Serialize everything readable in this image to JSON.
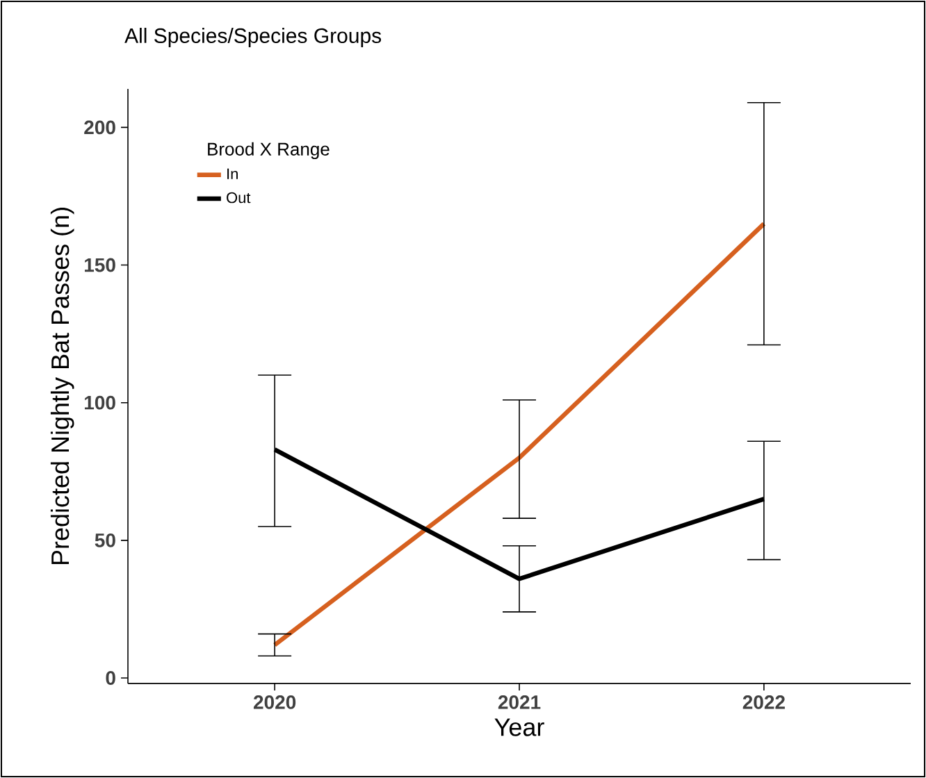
{
  "chart_data": {
    "type": "line",
    "title": "All Species/Species Groups",
    "xlabel": "Year",
    "ylabel": "Predicted Nightly Bat Passes (n)",
    "legend_title": "Brood X Range",
    "x": [
      2020,
      2021,
      2022
    ],
    "xlim": [
      2019.4,
      2022.6
    ],
    "xticks": [
      2020,
      2021,
      2022
    ],
    "ylim": [
      -2,
      214
    ],
    "yticks": [
      0,
      50,
      100,
      150,
      200
    ],
    "legend": "top left",
    "grid": false,
    "marker": "none",
    "line_style": "solid",
    "series": [
      {
        "name": "In",
        "color": "#d6601f",
        "values": [
          12,
          80,
          165
        ],
        "errors": [
          [
            8,
            16
          ],
          [
            58,
            101
          ],
          [
            121,
            209
          ]
        ]
      },
      {
        "name": "Out",
        "color": "#000000",
        "values": [
          83,
          36,
          65
        ],
        "errors": [
          [
            55,
            110
          ],
          [
            24,
            48
          ],
          [
            43,
            86
          ]
        ]
      }
    ]
  }
}
